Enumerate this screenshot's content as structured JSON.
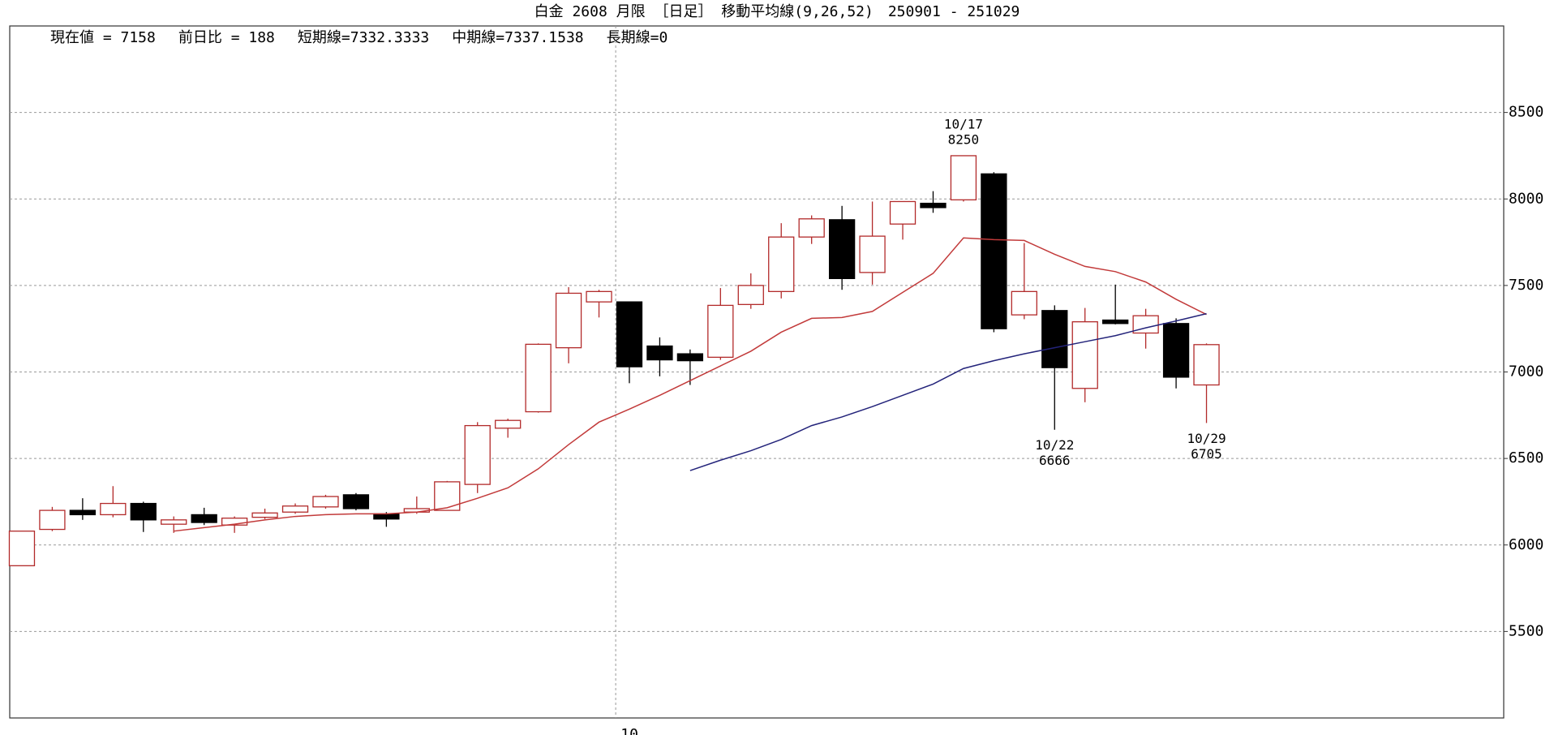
{
  "chart_data": {
    "type": "candlestick",
    "title": "白金 2608 月限 ［日足］ 移動平均線(9,26,52)　250901 - 251029",
    "info": [
      "現在値 = 7158",
      "前日比 = 188",
      "短期線=7332.3333",
      "中期線=7337.1538",
      "長期線=0"
    ],
    "categories": [
      null,
      null,
      null,
      null,
      null,
      null,
      null,
      null,
      null,
      null,
      null,
      null,
      null,
      null,
      null,
      null,
      null,
      null,
      null,
      null,
      "10",
      null,
      null,
      null,
      null,
      null,
      null,
      null,
      null,
      null,
      null,
      null,
      null,
      null,
      null,
      null,
      null,
      null,
      null,
      null
    ],
    "open": [
      5880,
      6090,
      6200,
      6175,
      6240,
      6120,
      6175,
      6115,
      6160,
      6190,
      6220,
      6290,
      6180,
      6190,
      6200,
      6350,
      6675,
      6770,
      7140,
      7405,
      7405,
      7150,
      7105,
      7085,
      7390,
      7465,
      7780,
      7880,
      7575,
      7855,
      7975,
      7995,
      8145,
      7330,
      7355,
      6905,
      7300,
      7225,
      7280,
      6925
    ],
    "high": [
      6080,
      6220,
      6270,
      6340,
      6250,
      6165,
      6215,
      6165,
      6210,
      6240,
      6290,
      6300,
      6190,
      6280,
      6370,
      6710,
      6730,
      7165,
      7490,
      7475,
      7405,
      7200,
      7130,
      7485,
      7570,
      7860,
      7905,
      7960,
      7985,
      7985,
      8045,
      8250,
      8155,
      7745,
      7385,
      7370,
      7505,
      7365,
      7310,
      7165
    ],
    "low": [
      5880,
      6080,
      6145,
      6160,
      6075,
      6070,
      6115,
      6070,
      6150,
      6180,
      6210,
      6200,
      6105,
      6180,
      6200,
      6300,
      6620,
      6765,
      7050,
      7315,
      6935,
      6975,
      6925,
      7070,
      7365,
      7425,
      7740,
      7475,
      7505,
      7765,
      7920,
      7985,
      7230,
      7305,
      6666,
      6825,
      7275,
      7135,
      6905,
      6705
    ],
    "close": [
      6080,
      6200,
      6175,
      6240,
      6145,
      6145,
      6130,
      6155,
      6185,
      6225,
      6280,
      6210,
      6150,
      6210,
      6365,
      6690,
      6720,
      7160,
      7455,
      7465,
      7030,
      7070,
      7065,
      7385,
      7500,
      7780,
      7885,
      7540,
      7785,
      7985,
      7950,
      8250,
      7250,
      7465,
      7025,
      7290,
      7280,
      7325,
      6970,
      7158
    ],
    "up_color": "#b22a2a",
    "down_color": "#000000",
    "series": [
      {
        "color": "#c23a3a",
        "values": [
          null,
          null,
          null,
          null,
          null,
          6080,
          6100,
          6120,
          6145,
          6165,
          6175,
          6180,
          6180,
          6190,
          6215,
          6270,
          6330,
          6440,
          6580,
          6710,
          6785,
          6865,
          6950,
          7035,
          7120,
          7230,
          7310,
          7315,
          7350,
          7460,
          7570,
          7775,
          7765,
          7760,
          7680,
          7610,
          7580,
          7520,
          7420,
          7332
        ]
      },
      {
        "color": "#23237a",
        "values": [
          null,
          null,
          null,
          null,
          null,
          null,
          null,
          null,
          null,
          null,
          null,
          null,
          null,
          null,
          null,
          null,
          null,
          null,
          null,
          null,
          null,
          null,
          6430,
          6490,
          6545,
          6610,
          6690,
          6740,
          6800,
          6865,
          6930,
          7020,
          7065,
          7105,
          7140,
          7175,
          7210,
          7255,
          7295,
          7337
        ]
      }
    ],
    "annotations": [
      {
        "date": "10/17",
        "value": 8250
      },
      {
        "date": "10/22",
        "value": 6666
      },
      {
        "date": "10/29",
        "value": 6705
      }
    ],
    "ylim": [
      5000,
      9000
    ],
    "yticks": [
      5500,
      6000,
      6500,
      7000,
      7500,
      8000,
      8500
    ],
    "grid": true
  }
}
